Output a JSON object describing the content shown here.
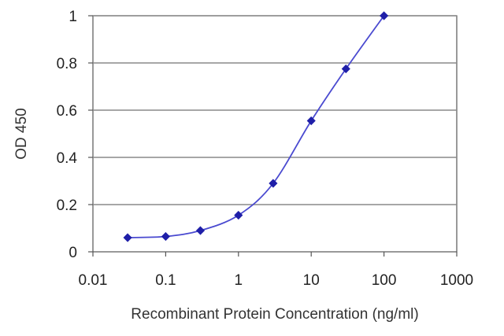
{
  "chart_data": {
    "type": "line",
    "title": "",
    "xlabel": "Recombinant Protein Concentration (ng/ml)",
    "ylabel": "OD 450",
    "x_scale": "log",
    "xlim": [
      0.01,
      1000
    ],
    "ylim": [
      0,
      1
    ],
    "x_ticks": [
      0.01,
      0.1,
      1,
      10,
      100,
      1000
    ],
    "x_tick_labels": [
      "0.01",
      "0.1",
      "1",
      "10",
      "100",
      "1000"
    ],
    "y_ticks": [
      0,
      0.2,
      0.4,
      0.6,
      0.8,
      1
    ],
    "y_tick_labels": [
      "0",
      "0.2",
      "0.4",
      "0.6",
      "0.8",
      "1"
    ],
    "grid": "horizontal",
    "legend": "none",
    "series": [
      {
        "color": "#2a2ab5",
        "marker": "diamond",
        "x": [
          0.03,
          0.1,
          0.3,
          1,
          3,
          10,
          30,
          100
        ],
        "y": [
          0.06,
          0.065,
          0.09,
          0.155,
          0.29,
          0.555,
          0.775,
          1.0
        ]
      }
    ],
    "colors": {
      "line": "#4a4ad0",
      "marker": "#1f1fa8",
      "grid": "#8a8a8a",
      "axis": "#555555"
    }
  }
}
